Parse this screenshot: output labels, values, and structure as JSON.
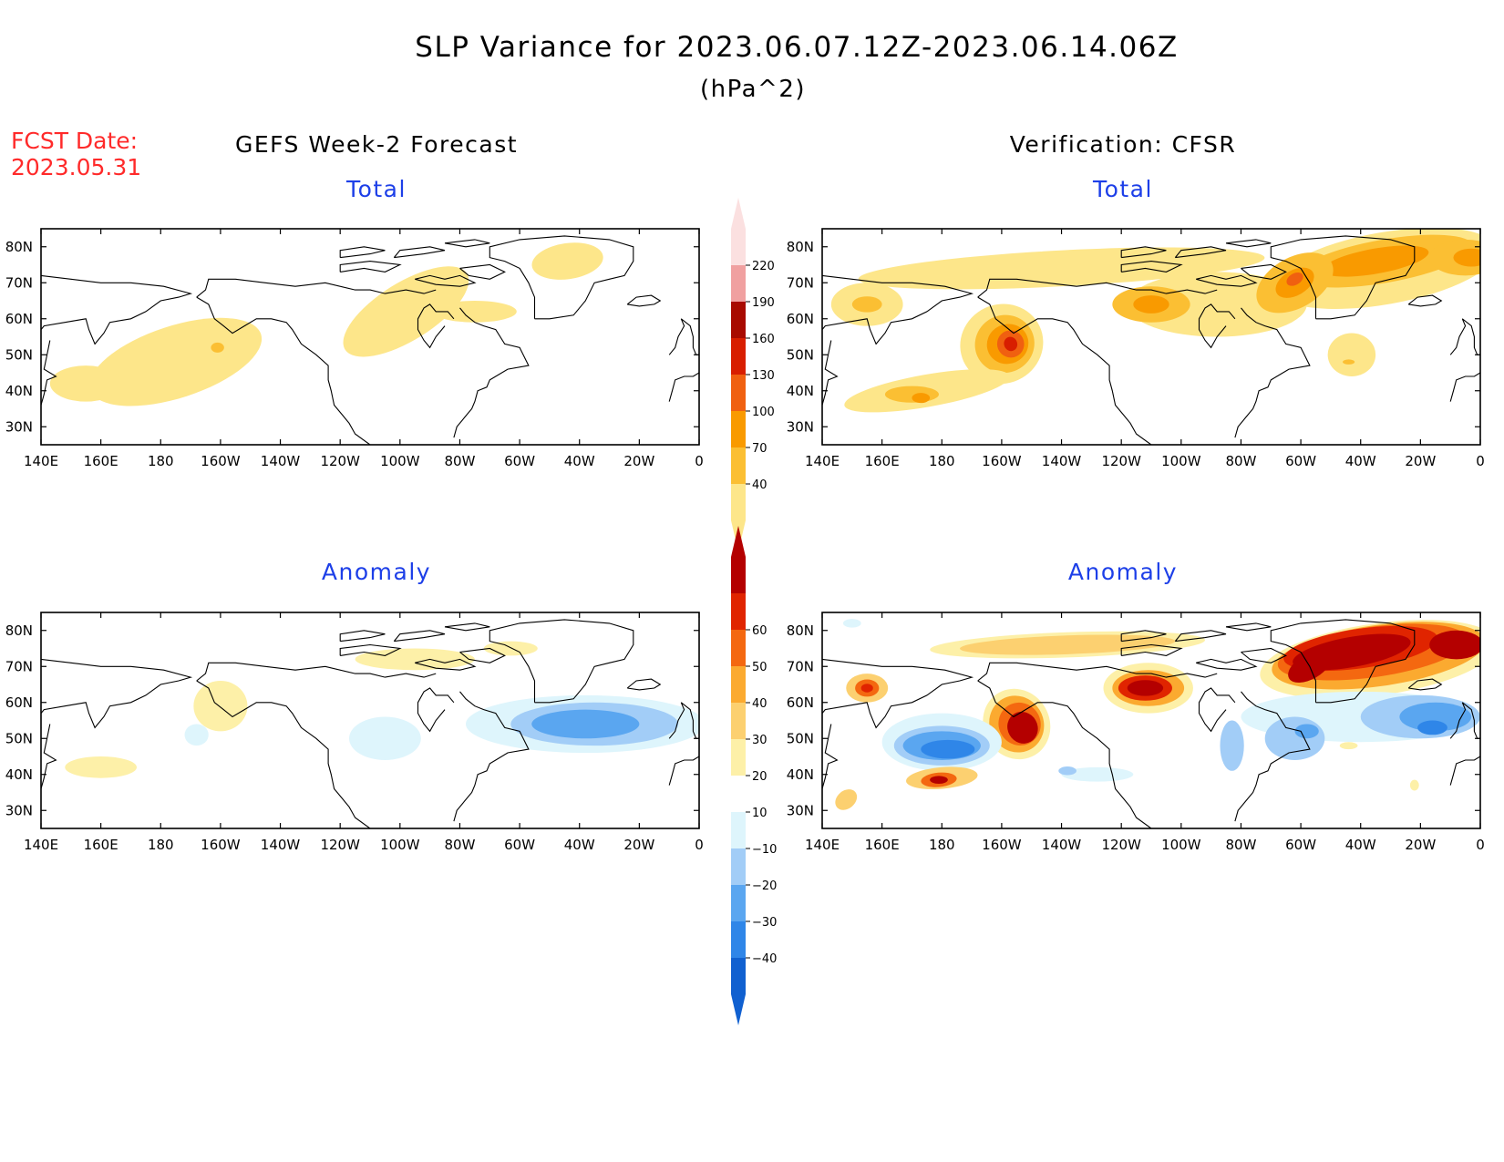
{
  "title": "SLP Variance for 2023.06.07.12Z-2023.06.14.06Z",
  "units": "(hPa^2)",
  "fcst_date_label": "FCST Date:",
  "fcst_date": "2023.05.31",
  "left_heading": "GEFS Week-2 Forecast",
  "right_heading": "Verification: CFSR",
  "panels": {
    "forecast_total": {
      "subtitle": "Total"
    },
    "verification_total": {
      "subtitle": "Total"
    },
    "forecast_anomaly": {
      "subtitle": "Anomaly"
    },
    "verification_anomaly": {
      "subtitle": "Anomaly"
    }
  },
  "axes": {
    "lon_labels": [
      "140E",
      "160E",
      "180",
      "160W",
      "140W",
      "120W",
      "100W",
      "80W",
      "60W",
      "40W",
      "20W",
      "0"
    ],
    "lon_values": [
      140,
      160,
      180,
      200,
      220,
      240,
      260,
      280,
      300,
      320,
      340,
      360
    ],
    "lon_range": [
      140,
      360
    ],
    "lat_labels": [
      "30N",
      "40N",
      "50N",
      "60N",
      "70N",
      "80N"
    ],
    "lat_values": [
      30,
      40,
      50,
      60,
      70,
      80
    ],
    "lat_range": [
      25,
      85
    ]
  },
  "colorbars": {
    "total": {
      "labels": [
        "40",
        "70",
        "100",
        "130",
        "160",
        "190",
        "220"
      ],
      "colors": [
        "#fde68a",
        "#fbbf33",
        "#f99a00",
        "#f06010",
        "#d81e00",
        "#a80a00",
        "#f0a0a0",
        "#fbe0e0"
      ]
    },
    "anomaly": {
      "labels": [
        "−40",
        "−30",
        "−20",
        "−10",
        "10",
        "20",
        "30",
        "40",
        "50",
        "60"
      ],
      "colors": [
        "#1060d0",
        "#2f86e8",
        "#5aa6f0",
        "#a2cdf7",
        "#def5fc",
        "#ffffff",
        "#fdf0a8",
        "#fcd070",
        "#fbaa30",
        "#f46810",
        "#e02400",
        "#b40000"
      ]
    }
  },
  "fields": {
    "forecast_total": [
      {
        "lon": 185,
        "lat": 48,
        "rx": 30,
        "ry": 10,
        "rot": -18,
        "level": 0
      },
      {
        "lon": 155,
        "lat": 42,
        "rx": 12,
        "ry": 5,
        "rot": 0,
        "level": 0
      },
      {
        "lon": 199,
        "lat": 52,
        "rx": 2.2,
        "ry": 1.4,
        "rot": 0,
        "level": 1
      },
      {
        "lon": 262,
        "lat": 62,
        "rx": 24,
        "ry": 8,
        "rot": -32,
        "level": 0
      },
      {
        "lon": 285,
        "lat": 62,
        "rx": 14,
        "ry": 3,
        "rot": 0,
        "level": 0
      },
      {
        "lon": 316,
        "lat": 76,
        "rx": 12,
        "ry": 5,
        "rot": -8,
        "level": 0
      }
    ],
    "verification_total": [
      {
        "lon": 220,
        "lat": 74,
        "rx": 68,
        "ry": 5,
        "rot": -3,
        "level": 0
      },
      {
        "lon": 155,
        "lat": 64,
        "rx": 12,
        "ry": 6,
        "rot": 0,
        "level": 0
      },
      {
        "lon": 155,
        "lat": 64,
        "rx": 5,
        "ry": 2.2,
        "rot": 0,
        "level": 1
      },
      {
        "lon": 200,
        "lat": 53,
        "rx": 14,
        "ry": 11,
        "rot": -25,
        "level": 0
      },
      {
        "lon": 201,
        "lat": 53,
        "rx": 10,
        "ry": 8,
        "rot": -25,
        "level": 1
      },
      {
        "lon": 202,
        "lat": 53,
        "rx": 7,
        "ry": 5.5,
        "rot": -25,
        "level": 2
      },
      {
        "lon": 203,
        "lat": 53,
        "rx": 4.5,
        "ry": 3.8,
        "rot": -25,
        "level": 3
      },
      {
        "lon": 203,
        "lat": 53,
        "rx": 2.2,
        "ry": 2,
        "rot": -25,
        "level": 4
      },
      {
        "lon": 175,
        "lat": 40,
        "rx": 28,
        "ry": 4.5,
        "rot": -10,
        "level": 0
      },
      {
        "lon": 170,
        "lat": 39,
        "rx": 9,
        "ry": 2.3,
        "rot": 0,
        "level": 1
      },
      {
        "lon": 173,
        "lat": 38,
        "rx": 3,
        "ry": 1.4,
        "rot": 0,
        "level": 2
      },
      {
        "lon": 272,
        "lat": 64,
        "rx": 30,
        "ry": 9,
        "rot": 0,
        "level": 0
      },
      {
        "lon": 250,
        "lat": 64,
        "rx": 13,
        "ry": 5,
        "rot": 0,
        "level": 1
      },
      {
        "lon": 250,
        "lat": 64,
        "rx": 6,
        "ry": 2.5,
        "rot": 0,
        "level": 2
      },
      {
        "lon": 328,
        "lat": 74,
        "rx": 38,
        "ry": 10,
        "rot": -10,
        "level": 0
      },
      {
        "lon": 328,
        "lat": 76,
        "rx": 30,
        "ry": 6,
        "rot": -10,
        "level": 1
      },
      {
        "lon": 325,
        "lat": 76,
        "rx": 18,
        "ry": 3.5,
        "rot": -10,
        "level": 2
      },
      {
        "lon": 298,
        "lat": 70,
        "rx": 14,
        "ry": 7,
        "rot": -30,
        "level": 1
      },
      {
        "lon": 298,
        "lat": 70,
        "rx": 7,
        "ry": 3.5,
        "rot": -30,
        "level": 2
      },
      {
        "lon": 298,
        "lat": 71,
        "rx": 3,
        "ry": 1.6,
        "rot": -30,
        "level": 3
      },
      {
        "lon": 355,
        "lat": 77,
        "rx": 12,
        "ry": 5,
        "rot": 0,
        "level": 1
      },
      {
        "lon": 357,
        "lat": 77,
        "rx": 6,
        "ry": 2.5,
        "rot": 0,
        "level": 2
      },
      {
        "lon": 317,
        "lat": 50,
        "rx": 8,
        "ry": 6,
        "rot": 0,
        "level": 0
      },
      {
        "lon": 316,
        "lat": 48,
        "rx": 2,
        "ry": 0.7,
        "rot": 0,
        "level": 1
      }
    ],
    "forecast_anomaly": [
      {
        "lon": 322,
        "lat": 54,
        "rx": 40,
        "ry": 8,
        "rot": 0,
        "level": -1
      },
      {
        "lon": 325,
        "lat": 54,
        "rx": 28,
        "ry": 6,
        "rot": 0,
        "level": -2
      },
      {
        "lon": 322,
        "lat": 54,
        "rx": 18,
        "ry": 4,
        "rot": 0,
        "level": -3
      },
      {
        "lon": 255,
        "lat": 50,
        "rx": 12,
        "ry": 6,
        "rot": 0,
        "level": -1
      },
      {
        "lon": 192,
        "lat": 51,
        "rx": 4,
        "ry": 3,
        "rot": 0,
        "level": -1
      },
      {
        "lon": 200,
        "lat": 59,
        "rx": 9,
        "ry": 7,
        "rot": 0,
        "level": 1
      },
      {
        "lon": 160,
        "lat": 42,
        "rx": 12,
        "ry": 3,
        "rot": 0,
        "level": 1
      },
      {
        "lon": 265,
        "lat": 72,
        "rx": 20,
        "ry": 3,
        "rot": 0,
        "level": 1
      },
      {
        "lon": 297,
        "lat": 75,
        "rx": 9,
        "ry": 2,
        "rot": 0,
        "level": 1
      }
    ],
    "verification_anomaly": [
      {
        "lon": 222,
        "lat": 76,
        "rx": 46,
        "ry": 3.5,
        "rot": -2,
        "level": 1
      },
      {
        "lon": 222,
        "lat": 76,
        "rx": 36,
        "ry": 2.6,
        "rot": -2,
        "level": 2
      },
      {
        "lon": 155,
        "lat": 64,
        "rx": 7,
        "ry": 4,
        "rot": 0,
        "level": 2
      },
      {
        "lon": 155,
        "lat": 64,
        "rx": 4,
        "ry": 2.4,
        "rot": 0,
        "level": 4
      },
      {
        "lon": 155,
        "lat": 64,
        "rx": 2,
        "ry": 1.2,
        "rot": 0,
        "level": 5
      },
      {
        "lon": 205,
        "lat": 54,
        "rx": 11,
        "ry": 10,
        "rot": -30,
        "level": 1
      },
      {
        "lon": 205,
        "lat": 54,
        "rx": 9,
        "ry": 8,
        "rot": -30,
        "level": 3
      },
      {
        "lon": 206,
        "lat": 54,
        "rx": 7,
        "ry": 6,
        "rot": -30,
        "level": 4
      },
      {
        "lon": 207,
        "lat": 53,
        "rx": 5,
        "ry": 4.5,
        "rot": -30,
        "level": 6
      },
      {
        "lon": 180,
        "lat": 49,
        "rx": 20,
        "ry": 8,
        "rot": 0,
        "level": -1
      },
      {
        "lon": 180,
        "lat": 48,
        "rx": 16,
        "ry": 5.5,
        "rot": 0,
        "level": -2
      },
      {
        "lon": 180,
        "lat": 48,
        "rx": 13,
        "ry": 4,
        "rot": 0,
        "level": -3
      },
      {
        "lon": 182,
        "lat": 47,
        "rx": 9,
        "ry": 2.6,
        "rot": 0,
        "level": -4
      },
      {
        "lon": 180,
        "lat": 39,
        "rx": 12,
        "ry": 3,
        "rot": -5,
        "level": 2
      },
      {
        "lon": 179,
        "lat": 38.5,
        "rx": 6,
        "ry": 2,
        "rot": -5,
        "level": 4
      },
      {
        "lon": 179,
        "lat": 38.5,
        "rx": 3,
        "ry": 1.1,
        "rot": 0,
        "level": 6
      },
      {
        "lon": 148,
        "lat": 33,
        "rx": 4,
        "ry": 2.5,
        "rot": -40,
        "level": 2
      },
      {
        "lon": 232,
        "lat": 40,
        "rx": 12,
        "ry": 2,
        "rot": 0,
        "level": -1
      },
      {
        "lon": 222,
        "lat": 41,
        "rx": 3,
        "ry": 1.2,
        "rot": 0,
        "level": -2
      },
      {
        "lon": 249,
        "lat": 64,
        "rx": 15,
        "ry": 7,
        "rot": 0,
        "level": 1
      },
      {
        "lon": 249,
        "lat": 64,
        "rx": 12,
        "ry": 5,
        "rot": 0,
        "level": 3
      },
      {
        "lon": 248,
        "lat": 64,
        "rx": 9,
        "ry": 3.5,
        "rot": 0,
        "level": 5
      },
      {
        "lon": 248,
        "lat": 64,
        "rx": 6,
        "ry": 2.2,
        "rot": 0,
        "level": 6
      },
      {
        "lon": 326,
        "lat": 72,
        "rx": 40,
        "ry": 10,
        "rot": -8,
        "level": 1
      },
      {
        "lon": 326,
        "lat": 73,
        "rx": 36,
        "ry": 8.5,
        "rot": -8,
        "level": 3
      },
      {
        "lon": 324,
        "lat": 74,
        "rx": 32,
        "ry": 7,
        "rot": -8,
        "level": 4
      },
      {
        "lon": 320,
        "lat": 75,
        "rx": 26,
        "ry": 5.5,
        "rot": -8,
        "level": 5
      },
      {
        "lon": 317,
        "lat": 74,
        "rx": 20,
        "ry": 4.2,
        "rot": -10,
        "level": 6
      },
      {
        "lon": 303,
        "lat": 70,
        "rx": 8,
        "ry": 3.5,
        "rot": -30,
        "level": 6
      },
      {
        "lon": 352,
        "lat": 76,
        "rx": 9,
        "ry": 4,
        "rot": 0,
        "level": 6
      },
      {
        "lon": 320,
        "lat": 56,
        "rx": 40,
        "ry": 7,
        "rot": 0,
        "level": -1
      },
      {
        "lon": 340,
        "lat": 56,
        "rx": 20,
        "ry": 6,
        "rot": 0,
        "level": -2
      },
      {
        "lon": 345,
        "lat": 56,
        "rx": 12,
        "ry": 4,
        "rot": 0,
        "level": -3
      },
      {
        "lon": 344,
        "lat": 53,
        "rx": 5,
        "ry": 2,
        "rot": 0,
        "level": -4
      },
      {
        "lon": 277,
        "lat": 48,
        "rx": 4,
        "ry": 7,
        "rot": 0,
        "level": -2
      },
      {
        "lon": 298,
        "lat": 50,
        "rx": 10,
        "ry": 6,
        "rot": 0,
        "level": -2
      },
      {
        "lon": 302,
        "lat": 52,
        "rx": 4,
        "ry": 2,
        "rot": 0,
        "level": -3
      },
      {
        "lon": 316,
        "lat": 48,
        "rx": 3,
        "ry": 1,
        "rot": 0,
        "level": 1
      },
      {
        "lon": 150,
        "lat": 82,
        "rx": 3,
        "ry": 1.2,
        "rot": 0,
        "level": -1
      },
      {
        "lon": 338,
        "lat": 37,
        "rx": 1.5,
        "ry": 1.5,
        "rot": 0,
        "level": 1
      }
    ]
  }
}
